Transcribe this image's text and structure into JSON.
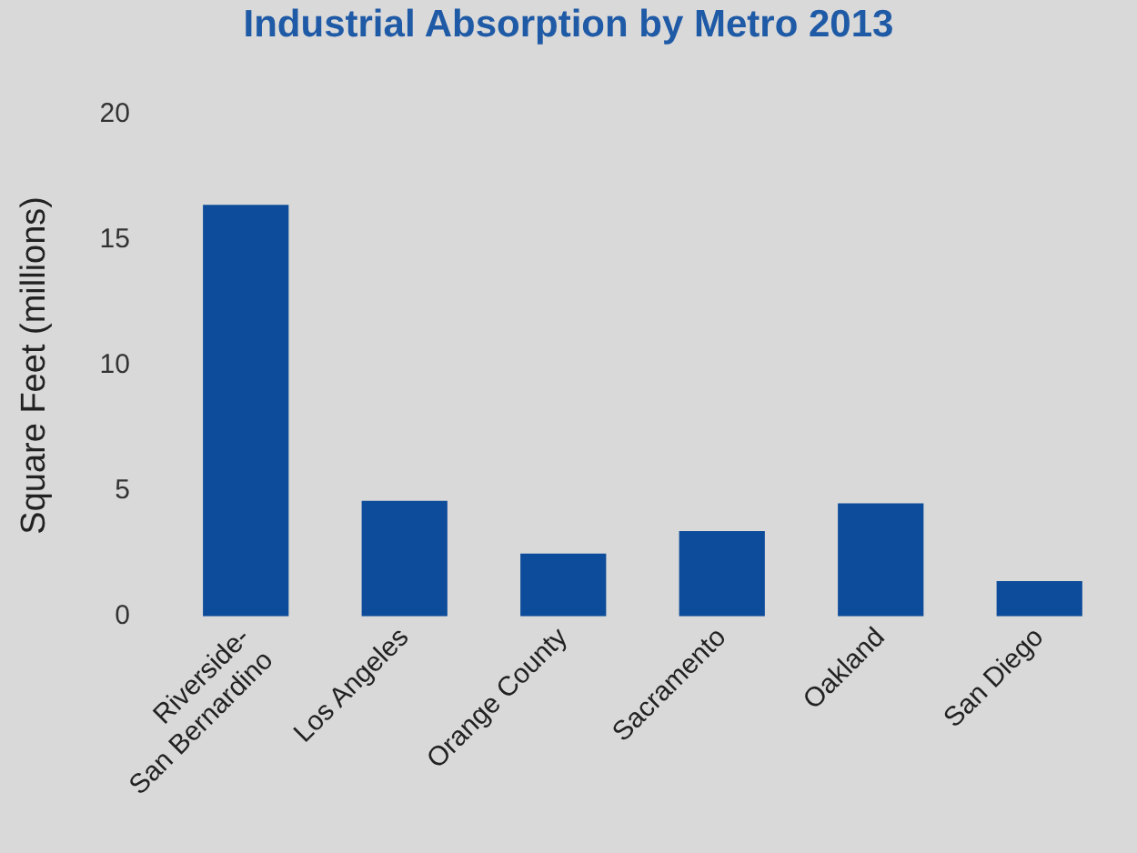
{
  "chart_data": {
    "type": "bar",
    "title": "Industrial Absorption by Metro 2013",
    "ylabel": "Square Feet (millions)",
    "categories": [
      "Riverside-\nSan Bernardino",
      "Los Angeles",
      "Orange County",
      "Sacramento",
      "Oakland",
      "San Diego"
    ],
    "values": [
      16.4,
      4.6,
      2.5,
      3.4,
      4.5,
      1.4
    ],
    "color": "#0d4c9a",
    "ylim": [
      0,
      20
    ],
    "yticks": [
      0,
      5,
      10,
      15,
      20
    ],
    "grid": false,
    "legend": false
  }
}
